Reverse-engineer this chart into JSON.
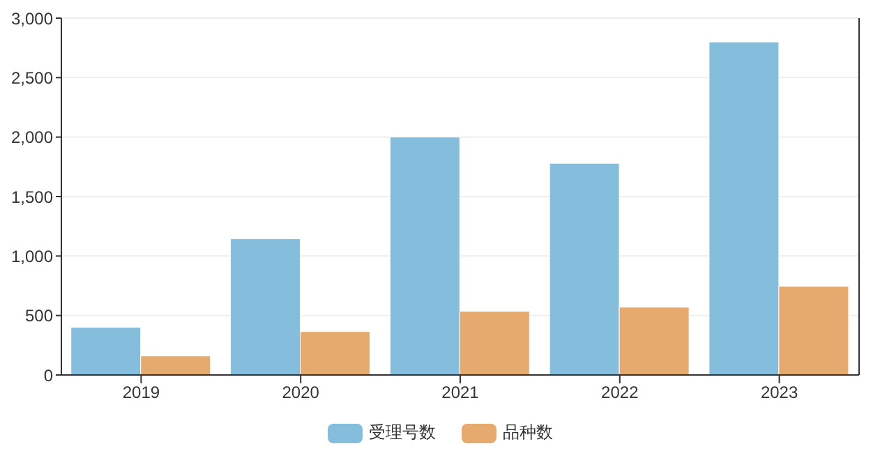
{
  "chart_data": {
    "type": "bar",
    "categories": [
      "2019",
      "2020",
      "2021",
      "2022",
      "2023"
    ],
    "series": [
      {
        "name": "受理号数",
        "color": "#85bedc",
        "values": [
          400,
          1145,
          2000,
          1780,
          2800
        ]
      },
      {
        "name": "品种数",
        "color": "#e6aa6e",
        "values": [
          160,
          365,
          535,
          570,
          745
        ]
      }
    ],
    "ylim": [
      0,
      3000
    ],
    "yticks": [
      {
        "value": 0,
        "label": "0"
      },
      {
        "value": 500,
        "label": "500"
      },
      {
        "value": 1000,
        "label": "1,000"
      },
      {
        "value": 1500,
        "label": "1,500"
      },
      {
        "value": 2000,
        "label": "2,000"
      },
      {
        "value": 2500,
        "label": "2,500"
      },
      {
        "value": 3000,
        "label": "3,000"
      }
    ],
    "grid": "y",
    "legend": "bottom"
  }
}
